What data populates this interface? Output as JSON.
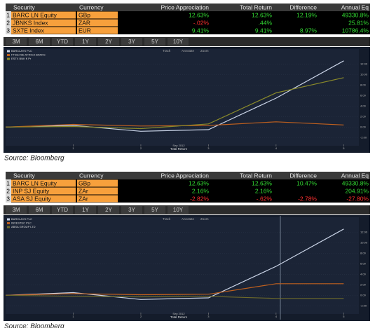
{
  "panels": [
    {
      "table": {
        "columns": [
          "Security",
          "Currency",
          "Price Appreciation",
          "Total Return",
          "Difference",
          "Annual Eq"
        ],
        "rows": [
          [
            "1",
            "BARC LN Equity",
            "GBp",
            "12.63%",
            "12.63%",
            "12.19%",
            "49330.8%"
          ],
          [
            "2",
            "JBNKS Index",
            "ZAR",
            "-.02%",
            ".44%",
            null,
            "25.81%"
          ],
          [
            "3",
            "SX7E Index",
            "EUR",
            "9.41%",
            "9.41%",
            "8.97%",
            "10786.4%"
          ]
        ]
      },
      "periods": [
        "3M",
        "6M",
        "YTD",
        "1Y",
        "2Y",
        "3Y",
        "5Y",
        "10Y"
      ],
      "source": "Source: Bloomberg"
    },
    {
      "table": {
        "columns": [
          "Security",
          "Currency",
          "Price Appreciation",
          "Total Return",
          "Difference",
          "Annual Eq"
        ],
        "rows": [
          [
            "1",
            "BARC LN Equity",
            "GBp",
            "12.63%",
            "12.63%",
            "10.47%",
            "49330.8%"
          ],
          [
            "2",
            "INP SJ Equity",
            "ZAr",
            "2.16%",
            "2.16%",
            null,
            "204.91%"
          ],
          [
            "3",
            "ASA SJ Equity",
            "ZAr",
            "-2.82%",
            "-.62%",
            "-2.78%",
            "-27.80%"
          ]
        ]
      },
      "periods": [
        "3M",
        "6M",
        "YTD",
        "1Y",
        "2Y",
        "3Y",
        "5Y",
        "10Y"
      ],
      "source": "Source: Bloomberg"
    }
  ],
  "chart_data": [
    {
      "type": "line",
      "toolbar": [
        "Track",
        "Annotate",
        "Zoom"
      ],
      "annotation": "Sep 2012",
      "xlabel": "Total Return",
      "x": [
        0,
        1,
        2,
        3,
        4,
        5
      ],
      "xlim": [
        0,
        5.1
      ],
      "xticks": [
        1,
        2,
        3,
        4,
        5
      ],
      "ylim": [
        -2.5,
        13.5
      ],
      "yticks": [
        {
          "value": -2,
          "label": "-2.00"
        },
        {
          "value": 0,
          "label": "0.00"
        },
        {
          "value": 2,
          "label": "2.00"
        },
        {
          "value": 4,
          "label": "4.00"
        },
        {
          "value": 6,
          "label": "6.00"
        },
        {
          "value": 8,
          "label": "8.00"
        },
        {
          "value": 10,
          "label": "10.00"
        },
        {
          "value": 12,
          "label": "12.00"
        }
      ],
      "series": [
        {
          "name": "BARCLAYS PLC",
          "color": "#c9d3e6",
          "values": [
            0,
            0.3,
            -0.8,
            -0.5,
            5.5,
            12.6
          ]
        },
        {
          "name": "FTSE/JSE AFRICA BANKS",
          "color": "#c0601e",
          "values": [
            0,
            0.5,
            0.2,
            0.3,
            1.0,
            0.4
          ]
        },
        {
          "name": "ESTX BNK € Pr",
          "color": "#8a8a2a",
          "values": [
            0,
            0.1,
            -0.3,
            0.6,
            6.5,
            9.4
          ]
        }
      ]
    },
    {
      "type": "line",
      "toolbar": [
        "Track",
        "Annotate",
        "Zoom"
      ],
      "annotation": "Sep 2012",
      "xlabel": "Total Return",
      "x": [
        0,
        1,
        2,
        3,
        4,
        5
      ],
      "xlim": [
        0,
        5.1
      ],
      "xticks": [
        1,
        2,
        3,
        4,
        5
      ],
      "ylim": [
        -2.5,
        13.5
      ],
      "yticks": [
        {
          "value": -2,
          "label": "-2.00"
        },
        {
          "value": 0,
          "label": "0.00"
        },
        {
          "value": 2,
          "label": "2.00"
        },
        {
          "value": 4,
          "label": "4.00"
        },
        {
          "value": 6,
          "label": "6.00"
        },
        {
          "value": 8,
          "label": "8.00"
        },
        {
          "value": 10,
          "label": "10.00"
        },
        {
          "value": 12,
          "label": "12.00"
        }
      ],
      "series": [
        {
          "name": "BARCLAYS PLC",
          "color": "#c9d3e6",
          "values": [
            0,
            0.5,
            -0.8,
            -0.5,
            5.5,
            12.6
          ]
        },
        {
          "name": "INVESTEC PLC",
          "color": "#c0601e",
          "values": [
            0,
            0.3,
            0.1,
            0.2,
            2.2,
            2.2
          ]
        },
        {
          "name": "ABSA GROUP LTD",
          "color": "#6e6a2a",
          "values": [
            0,
            -0.2,
            -0.3,
            -0.2,
            -0.6,
            -0.6
          ]
        }
      ]
    }
  ]
}
